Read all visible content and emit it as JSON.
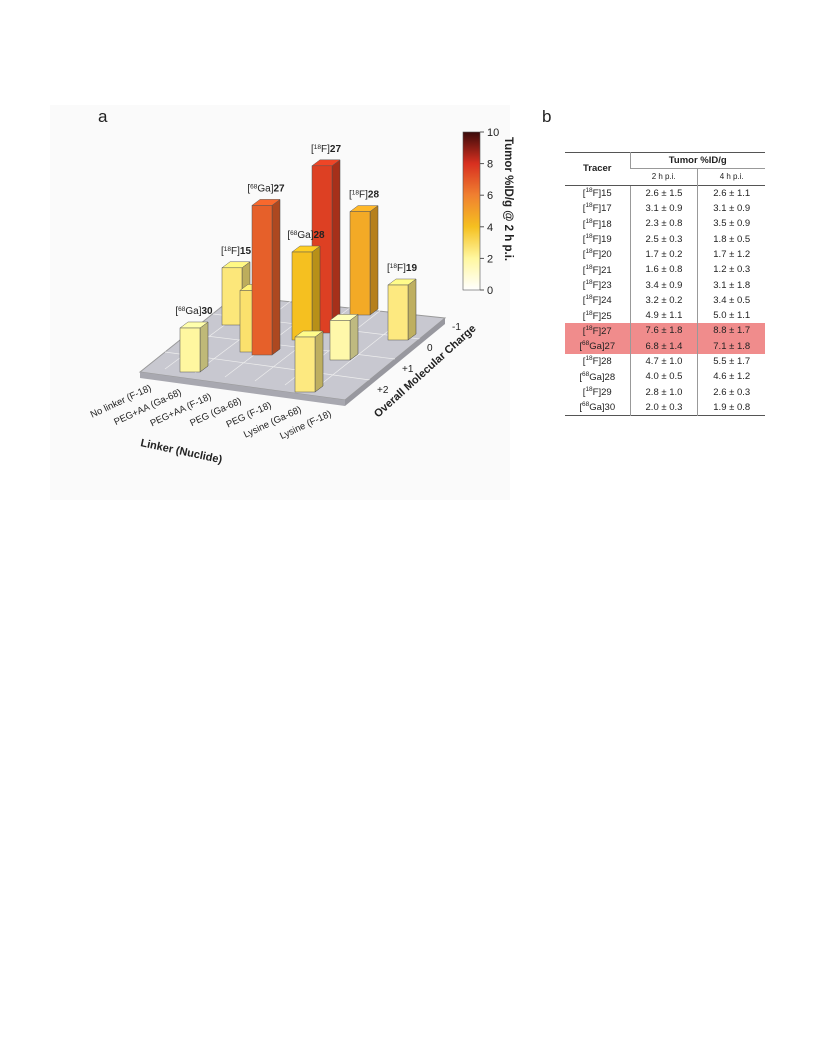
{
  "panel_a": {
    "letter": "a",
    "colorbar": {
      "title": "Tumor %ID/g @ 2 h p.i.",
      "lim": [
        0,
        10
      ],
      "ticks": [
        0,
        2,
        4,
        6,
        8,
        10
      ]
    },
    "linker_axis": {
      "title": "Linker (Nuclide)",
      "categories": [
        "No linker (F-18)",
        "PEG+AA (Ga-68)",
        "PEG+AA (F-18)",
        "PEG (Ga-68)",
        "PEG (F-18)",
        "Lysine (Ga-68)",
        "Lysine (F-18)"
      ]
    },
    "charge_axis": {
      "title": "Overall Molecular Charge",
      "categories": [
        "-1",
        "0",
        "+1",
        "+2"
      ]
    },
    "bars": [
      {
        "label": [
          "[",
          "18",
          "F]",
          "28"
        ],
        "value": 4.7
      },
      {
        "label": [
          "[",
          "18",
          "F]",
          "15"
        ],
        "value": 2.6
      },
      {
        "label": [
          "[",
          "18",
          "F]",
          "27"
        ],
        "value": 7.6
      },
      {
        "label": [
          "[",
          "68",
          "Ga]",
          "28"
        ],
        "value": 4.0
      },
      {
        "label": [
          "[",
          "18",
          "F]",
          "19"
        ],
        "value": 2.5
      },
      {
        "value": 2.8
      },
      {
        "label": [
          "[",
          "68",
          "Ga]",
          "27"
        ],
        "value": 6.8
      },
      {
        "value": 1.8
      },
      {
        "label": [
          "[",
          "68",
          "Ga]",
          "30"
        ],
        "value": 2.0
      },
      {
        "value": 2.5
      }
    ]
  },
  "panel_b": {
    "letter": "b",
    "header": {
      "tracer": "Tracer",
      "group": "Tumor %ID/g",
      "cols": [
        "2 h p.i.",
        "4 h p.i."
      ]
    },
    "rows": [
      {
        "tracer": [
          "[",
          "18",
          "F]",
          "15"
        ],
        "cells": [
          "2.6 ± 1.5",
          "2.6 ± 1.1"
        ]
      },
      {
        "tracer": [
          "[",
          "18",
          "F]",
          "17"
        ],
        "cells": [
          "3.1 ± 0.9",
          "3.1 ± 0.9"
        ]
      },
      {
        "tracer": [
          "[",
          "18",
          "F]",
          "18"
        ],
        "cells": [
          "2.3 ± 0.8",
          "3.5 ± 0.9"
        ]
      },
      {
        "tracer": [
          "[",
          "18",
          "F]",
          "19"
        ],
        "cells": [
          "2.5 ± 0.3",
          "1.8 ± 0.5"
        ]
      },
      {
        "tracer": [
          "[",
          "18",
          "F]",
          "20"
        ],
        "cells": [
          "1.7 ± 0.2",
          "1.7 ± 1.2"
        ]
      },
      {
        "tracer": [
          "[",
          "18",
          "F]",
          "21"
        ],
        "cells": [
          "1.6 ± 0.8",
          "1.2 ± 0.3"
        ]
      },
      {
        "tracer": [
          "[",
          "18",
          "F]",
          "23"
        ],
        "cells": [
          "3.4 ± 0.9",
          "3.1 ± 1.8"
        ]
      },
      {
        "tracer": [
          "[",
          "18",
          "F]",
          "24"
        ],
        "cells": [
          "3.2 ± 0.2",
          "3.4 ± 0.5"
        ]
      },
      {
        "tracer": [
          "[",
          "18",
          "F]",
          "25"
        ],
        "cells": [
          "4.9 ± 1.1",
          "5.0 ± 1.1"
        ]
      },
      {
        "tracer": [
          "[",
          "18",
          "F]",
          "27"
        ],
        "cells": [
          "7.6 ± 1.8",
          "8.8 ± 1.7"
        ],
        "highlight": true
      },
      {
        "tracer": [
          "[",
          "68",
          "Ga]",
          "27"
        ],
        "cells": [
          "6.8 ± 1.4",
          "7.1 ± 1.8"
        ],
        "highlight": true
      },
      {
        "tracer": [
          "[",
          "18",
          "F]",
          "28"
        ],
        "cells": [
          "4.7 ± 1.0",
          "5.5 ± 1.7"
        ]
      },
      {
        "tracer": [
          "[",
          "68",
          "Ga]",
          "28"
        ],
        "cells": [
          "4.0 ± 0.5",
          "4.6 ± 1.2"
        ]
      },
      {
        "tracer": [
          "[",
          "18",
          "F]",
          "29"
        ],
        "cells": [
          "2.8 ± 1.0",
          "2.6 ± 0.3"
        ]
      },
      {
        "tracer": [
          "[",
          "68",
          "Ga]",
          "30"
        ],
        "cells": [
          "2.0 ± 0.3",
          "1.9 ± 0.8"
        ]
      }
    ]
  }
}
